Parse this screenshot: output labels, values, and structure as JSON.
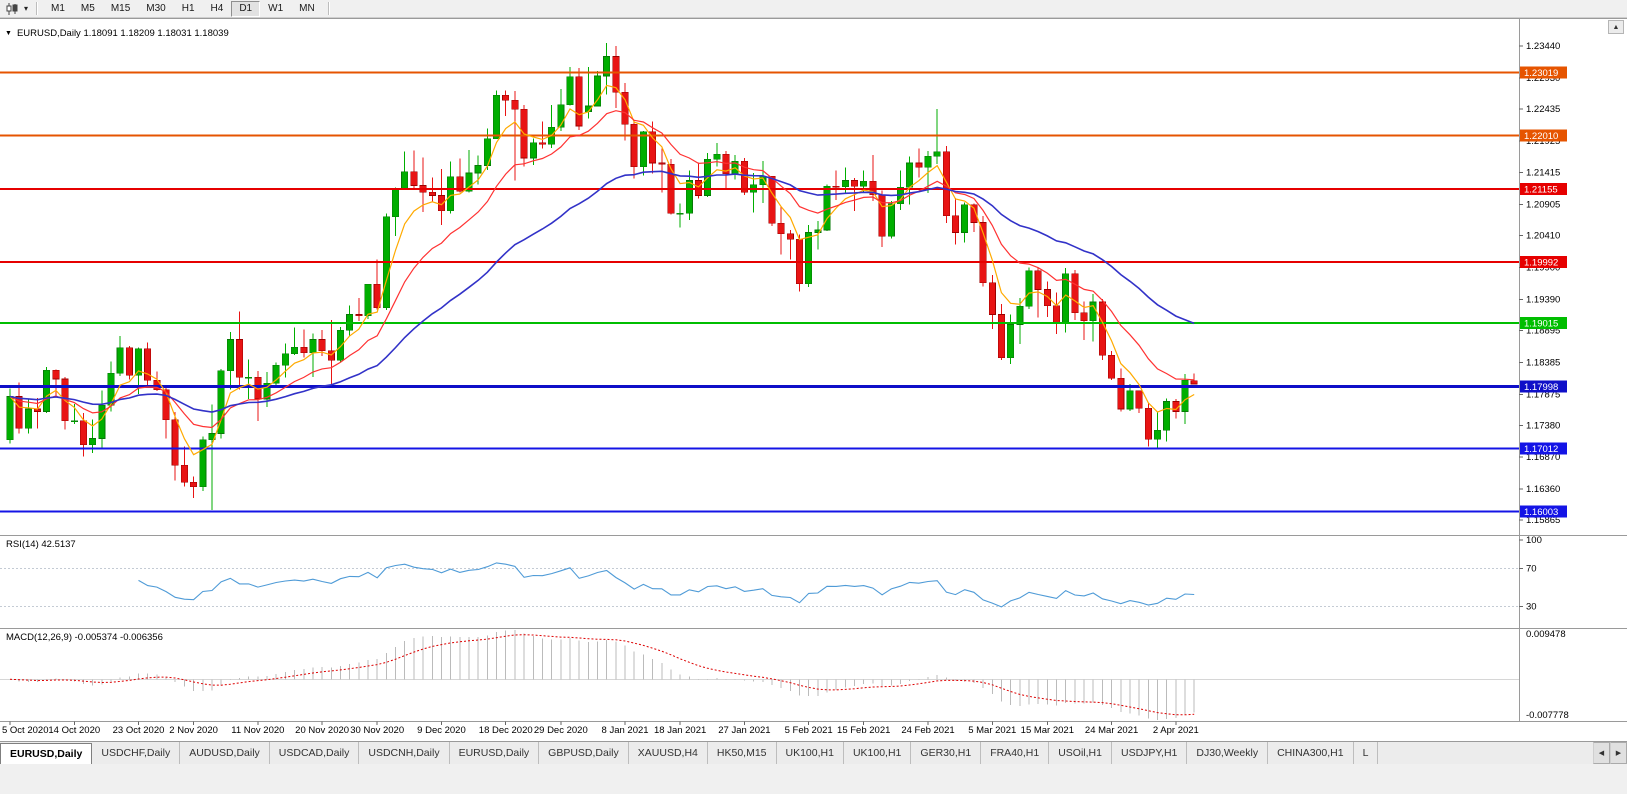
{
  "toolbar": {
    "timeframes": [
      "M1",
      "M5",
      "M15",
      "M30",
      "H1",
      "H4",
      "D1",
      "W1",
      "MN"
    ],
    "active_timeframe": "D1",
    "dropdown_icon": "▾"
  },
  "chart": {
    "title_marker": "▼",
    "title": "EURUSD,Daily 1.18091 1.18209 1.18031 1.18039",
    "scroll_up_icon": "▲"
  },
  "colors": {
    "candle_up": "#00AE00",
    "candle_up_border": "#067806",
    "candle_down": "#E81414",
    "candle_down_border": "#9B0000",
    "rsi_line": "#4F9BD7",
    "rsi_level": "#C4CBD4",
    "macd_hist": "#BBBBBB",
    "macd_signal": "#DD0000",
    "macd_zero": "#D6D6D6",
    "axis_line": "#9A9A9A",
    "axis_text": "#000000",
    "background": "#FFFFFF",
    "toolbar_bg": "#F0F0F0"
  },
  "chart_data": {
    "type": "candlestick",
    "symbol": "EURUSD",
    "period": "Daily",
    "ohlc_display": {
      "open": "1.18091",
      "high": "1.18209",
      "low": "1.18031",
      "close": "1.18039"
    },
    "price_domain": [
      1.1566,
      1.2371
    ],
    "y_axis_ticks": [
      "1.23440",
      "1.22930",
      "1.22435",
      "1.21925",
      "1.21415",
      "1.20905",
      "1.20410",
      "1.19900",
      "1.19390",
      "1.18895",
      "1.18385",
      "1.17875",
      "1.17380",
      "1.16870",
      "1.16360",
      "1.15865"
    ],
    "hlines": [
      {
        "price": 1.23019,
        "label": "1.23019",
        "color": "#E65400",
        "width": 2
      },
      {
        "price": 1.2201,
        "label": "1.22010",
        "color": "#E65400",
        "width": 2
      },
      {
        "price": 1.21155,
        "label": "1.21155",
        "color": "#E60000",
        "width": 2
      },
      {
        "price": 1.19992,
        "label": "1.19992",
        "color": "#E60000",
        "width": 2
      },
      {
        "price": 1.19015,
        "label": "1.19015",
        "color": "#00BE00",
        "width": 2
      },
      {
        "price": 1.17998,
        "label": "1.17998",
        "color": "#0F0FC8",
        "width": 3
      },
      {
        "price": 1.17012,
        "label": "1.17012",
        "color": "#1414E6",
        "width": 2
      },
      {
        "price": 1.16003,
        "label": "1.16003",
        "color": "#1414E6",
        "width": 2
      }
    ],
    "moving_averages": [
      {
        "name": "fast",
        "method": "ema",
        "period": 5,
        "color": "#FFAA00",
        "width": 1.2
      },
      {
        "name": "medium",
        "method": "ema",
        "period": 13,
        "color": "#FF3232",
        "width": 1.2
      },
      {
        "name": "slow",
        "method": "ema",
        "period": 34,
        "color": "#3232C8",
        "width": 1.6
      }
    ],
    "date_ticks": [
      {
        "index": 0,
        "label": "5 Oct 2020"
      },
      {
        "index": 7,
        "label": "14 Oct 2020"
      },
      {
        "index": 14,
        "label": "23 Oct 2020"
      },
      {
        "index": 20,
        "label": "2 Nov 2020"
      },
      {
        "index": 27,
        "label": "11 Nov 2020"
      },
      {
        "index": 34,
        "label": "20 Nov 2020"
      },
      {
        "index": 40,
        "label": "30 Nov 2020"
      },
      {
        "index": 47,
        "label": "9 Dec 2020"
      },
      {
        "index": 54,
        "label": "18 Dec 2020"
      },
      {
        "index": 60,
        "label": "29 Dec 2020"
      },
      {
        "index": 67,
        "label": "8 Jan 2021"
      },
      {
        "index": 73,
        "label": "18 Jan 2021"
      },
      {
        "index": 80,
        "label": "27 Jan 2021"
      },
      {
        "index": 87,
        "label": "5 Feb 2021"
      },
      {
        "index": 93,
        "label": "15 Feb 2021"
      },
      {
        "index": 100,
        "label": "24 Feb 2021"
      },
      {
        "index": 107,
        "label": "5 Mar 2021"
      },
      {
        "index": 113,
        "label": "15 Mar 2021"
      },
      {
        "index": 120,
        "label": "24 Mar 2021"
      },
      {
        "index": 127,
        "label": "2 Apr 2021"
      }
    ],
    "candles": [
      [
        1.1715,
        1.1797,
        1.1709,
        1.1784
      ],
      [
        1.1784,
        1.1806,
        1.1725,
        1.1733
      ],
      [
        1.1733,
        1.1781,
        1.1725,
        1.1764
      ],
      [
        1.1764,
        1.1782,
        1.1733,
        1.176
      ],
      [
        1.176,
        1.1831,
        1.1758,
        1.1826
      ],
      [
        1.1826,
        1.1827,
        1.1785,
        1.1812
      ],
      [
        1.1812,
        1.1815,
        1.1731,
        1.1745
      ],
      [
        1.1745,
        1.1772,
        1.174,
        1.1745
      ],
      [
        1.1745,
        1.1758,
        1.1688,
        1.1707
      ],
      [
        1.1707,
        1.1747,
        1.1694,
        1.1717
      ],
      [
        1.1717,
        1.1794,
        1.1702,
        1.177
      ],
      [
        1.177,
        1.184,
        1.176,
        1.1821
      ],
      [
        1.1821,
        1.1881,
        1.1817,
        1.1862
      ],
      [
        1.1862,
        1.1865,
        1.1811,
        1.1818
      ],
      [
        1.1818,
        1.1862,
        1.1788,
        1.186
      ],
      [
        1.186,
        1.187,
        1.1802,
        1.181
      ],
      [
        1.181,
        1.1824,
        1.1793,
        1.1795
      ],
      [
        1.1795,
        1.18,
        1.1717,
        1.1747
      ],
      [
        1.1747,
        1.1759,
        1.165,
        1.1674
      ],
      [
        1.1674,
        1.1704,
        1.164,
        1.1647
      ],
      [
        1.1647,
        1.1656,
        1.1622,
        1.164
      ],
      [
        1.164,
        1.172,
        1.1633,
        1.1715
      ],
      [
        1.1715,
        1.1771,
        1.1603,
        1.1725
      ],
      [
        1.1725,
        1.1828,
        1.1717,
        1.1825
      ],
      [
        1.1825,
        1.1887,
        1.1795,
        1.1875
      ],
      [
        1.1875,
        1.192,
        1.1795,
        1.1815
      ],
      [
        1.1815,
        1.1843,
        1.178,
        1.1815
      ],
      [
        1.1815,
        1.1825,
        1.1745,
        1.178
      ],
      [
        1.178,
        1.1823,
        1.1767,
        1.1805
      ],
      [
        1.1805,
        1.1838,
        1.1799,
        1.1834
      ],
      [
        1.1834,
        1.1869,
        1.1814,
        1.1852
      ],
      [
        1.1852,
        1.1894,
        1.185,
        1.1863
      ],
      [
        1.1863,
        1.1891,
        1.1846,
        1.1854
      ],
      [
        1.1854,
        1.1885,
        1.1815,
        1.1875
      ],
      [
        1.1875,
        1.189,
        1.1849,
        1.1857
      ],
      [
        1.1857,
        1.1906,
        1.18,
        1.1842
      ],
      [
        1.1842,
        1.1895,
        1.1838,
        1.189
      ],
      [
        1.189,
        1.1929,
        1.1881,
        1.1915
      ],
      [
        1.1915,
        1.1941,
        1.1905,
        1.1913
      ],
      [
        1.1913,
        1.1964,
        1.1908,
        1.1963
      ],
      [
        1.1963,
        1.2003,
        1.1923,
        1.1926
      ],
      [
        1.1926,
        1.2076,
        1.1922,
        1.2071
      ],
      [
        1.2071,
        1.2118,
        1.204,
        1.2115
      ],
      [
        1.2115,
        1.2175,
        1.2114,
        1.2143
      ],
      [
        1.2143,
        1.2177,
        1.2115,
        1.2121
      ],
      [
        1.2121,
        1.2166,
        1.2079,
        1.211
      ],
      [
        1.211,
        1.2134,
        1.2095,
        1.2105
      ],
      [
        1.2105,
        1.2147,
        1.2058,
        1.2081
      ],
      [
        1.2081,
        1.2159,
        1.2076,
        1.2135
      ],
      [
        1.2135,
        1.2164,
        1.211,
        1.2112
      ],
      [
        1.2112,
        1.2178,
        1.211,
        1.2141
      ],
      [
        1.2141,
        1.2169,
        1.2123,
        1.2153
      ],
      [
        1.2153,
        1.2212,
        1.2146,
        1.2196
      ],
      [
        1.2196,
        1.2273,
        1.2195,
        1.2265
      ],
      [
        1.2265,
        1.2273,
        1.2232,
        1.2257
      ],
      [
        1.2257,
        1.2272,
        1.2129,
        1.2243
      ],
      [
        1.2243,
        1.225,
        1.2151,
        1.2165
      ],
      [
        1.2165,
        1.2196,
        1.2154,
        1.2189
      ],
      [
        1.2189,
        1.2223,
        1.218,
        1.2187
      ],
      [
        1.2187,
        1.225,
        1.2181,
        1.2214
      ],
      [
        1.2214,
        1.2275,
        1.2208,
        1.225
      ],
      [
        1.225,
        1.231,
        1.2249,
        1.2295
      ],
      [
        1.2295,
        1.2309,
        1.221,
        1.2216
      ],
      [
        1.2239,
        1.231,
        1.2228,
        1.2248
      ],
      [
        1.2248,
        1.2304,
        1.2247,
        1.2296
      ],
      [
        1.2296,
        1.2349,
        1.2266,
        1.2327
      ],
      [
        1.2327,
        1.2344,
        1.2245,
        1.227
      ],
      [
        1.227,
        1.2285,
        1.2193,
        1.2219
      ],
      [
        1.2219,
        1.2225,
        1.2132,
        1.2151
      ],
      [
        1.2151,
        1.2208,
        1.2137,
        1.2207
      ],
      [
        1.2207,
        1.2223,
        1.214,
        1.2157
      ],
      [
        1.2157,
        1.218,
        1.211,
        1.2155
      ],
      [
        1.2155,
        1.2163,
        1.2075,
        1.2077
      ],
      [
        1.2077,
        1.2092,
        1.2054,
        1.2077
      ],
      [
        1.2077,
        1.2145,
        1.2066,
        1.2129
      ],
      [
        1.2129,
        1.2158,
        1.21,
        1.2105
      ],
      [
        1.2105,
        1.2173,
        1.2103,
        1.2163
      ],
      [
        1.2163,
        1.2189,
        1.2151,
        1.2171
      ],
      [
        1.2171,
        1.2176,
        1.2116,
        1.214
      ],
      [
        1.214,
        1.217,
        1.2131,
        1.216
      ],
      [
        1.216,
        1.2165,
        1.2106,
        1.211
      ],
      [
        1.211,
        1.2141,
        1.2078,
        1.2122
      ],
      [
        1.2122,
        1.216,
        1.2093,
        1.2136
      ],
      [
        1.2136,
        1.2136,
        1.2056,
        1.2061
      ],
      [
        1.2061,
        1.2087,
        1.2011,
        1.2044
      ],
      [
        1.2044,
        1.205,
        1.2003,
        1.2035
      ],
      [
        1.2035,
        1.2043,
        1.1952,
        1.1964
      ],
      [
        1.1964,
        1.2058,
        1.1959,
        1.2046
      ],
      [
        1.2046,
        1.2064,
        1.2019,
        1.205
      ],
      [
        1.205,
        1.2123,
        1.2048,
        1.212
      ],
      [
        1.212,
        1.2145,
        1.2098,
        1.2119
      ],
      [
        1.2119,
        1.215,
        1.2109,
        1.2129
      ],
      [
        1.2129,
        1.2133,
        1.208,
        1.212
      ],
      [
        1.212,
        1.2145,
        1.211,
        1.2128
      ],
      [
        1.2128,
        1.217,
        1.2096,
        1.2106
      ],
      [
        1.2106,
        1.2113,
        1.2023,
        1.204
      ],
      [
        1.204,
        1.2096,
        1.2036,
        1.2092
      ],
      [
        1.2092,
        1.2145,
        1.2082,
        1.2118
      ],
      [
        1.2118,
        1.2167,
        1.2091,
        1.2157
      ],
      [
        1.2157,
        1.218,
        1.2134,
        1.215
      ],
      [
        1.215,
        1.2176,
        1.2109,
        1.2168
      ],
      [
        1.2168,
        1.2243,
        1.2155,
        1.2175
      ],
      [
        1.2175,
        1.2184,
        1.2061,
        1.2073
      ],
      [
        1.2073,
        1.2101,
        1.2027,
        1.2046
      ],
      [
        1.2046,
        1.2094,
        1.203,
        1.209
      ],
      [
        1.209,
        1.2092,
        1.2047,
        1.2062
      ],
      [
        1.2062,
        1.2072,
        1.196,
        1.1966
      ],
      [
        1.1966,
        1.1978,
        1.1892,
        1.1915
      ],
      [
        1.1915,
        1.1932,
        1.1842,
        1.1846
      ],
      [
        1.1846,
        1.1915,
        1.1836,
        1.1899
      ],
      [
        1.1899,
        1.1941,
        1.1868,
        1.1928
      ],
      [
        1.1928,
        1.199,
        1.1924,
        1.1985
      ],
      [
        1.1985,
        1.199,
        1.191,
        1.1955
      ],
      [
        1.1955,
        1.1968,
        1.1911,
        1.1929
      ],
      [
        1.1929,
        1.195,
        1.1884,
        1.19
      ],
      [
        1.19,
        1.1989,
        1.1886,
        1.198
      ],
      [
        1.198,
        1.1986,
        1.1906,
        1.1918
      ],
      [
        1.1918,
        1.1936,
        1.1874,
        1.1905
      ],
      [
        1.1905,
        1.1948,
        1.1872,
        1.1935
      ],
      [
        1.1935,
        1.194,
        1.1842,
        1.185
      ],
      [
        1.185,
        1.1857,
        1.181,
        1.1813
      ],
      [
        1.1813,
        1.1829,
        1.176,
        1.1764
      ],
      [
        1.1764,
        1.1804,
        1.1761,
        1.1793
      ],
      [
        1.1793,
        1.1794,
        1.1758,
        1.1765
      ],
      [
        1.1765,
        1.1774,
        1.1704,
        1.1716
      ],
      [
        1.1716,
        1.176,
        1.17,
        1.173
      ],
      [
        1.173,
        1.1781,
        1.1712,
        1.1776
      ],
      [
        1.1776,
        1.178,
        1.1749,
        1.176
      ],
      [
        1.176,
        1.182,
        1.174,
        1.181
      ],
      [
        1.1809,
        1.1821,
        1.1803,
        1.1804
      ]
    ],
    "rsi": {
      "label": "RSI(14) 42.5137",
      "period": 14,
      "current": "42.5137",
      "axis_labels": [
        {
          "label": "100",
          "value": 100
        },
        {
          "label": "70",
          "value": 70
        },
        {
          "label": "30",
          "value": 30
        }
      ],
      "dashed_levels": [
        70,
        30
      ]
    },
    "macd": {
      "label": "MACD(12,26,9) -0.005374 -0.006356",
      "fast": 12,
      "slow": 26,
      "signal": 9,
      "current_values": "-0.005374 -0.006356",
      "axis_max": 0.009478,
      "axis_max_label": "0.009478",
      "axis_min": -0.007778,
      "axis_min_label": "-0.007778"
    }
  },
  "tabs": {
    "active_index": 0,
    "items": [
      "EURUSD,Daily",
      "USDCHF,Daily",
      "AUDUSD,Daily",
      "USDCAD,Daily",
      "USDCNH,Daily",
      "EURUSD,Daily",
      "GBPUSD,Daily",
      "XAUUSD,H4",
      "HK50,M15",
      "UK100,H1",
      "UK100,H1",
      "GER30,H1",
      "FRA40,H1",
      "USOil,H1",
      "USDJPY,H1",
      "DJ30,Weekly",
      "CHINA300,H1"
    ],
    "partial_label": "L",
    "scroll_left_icon": "◀",
    "scroll_right_icon": "▶"
  }
}
